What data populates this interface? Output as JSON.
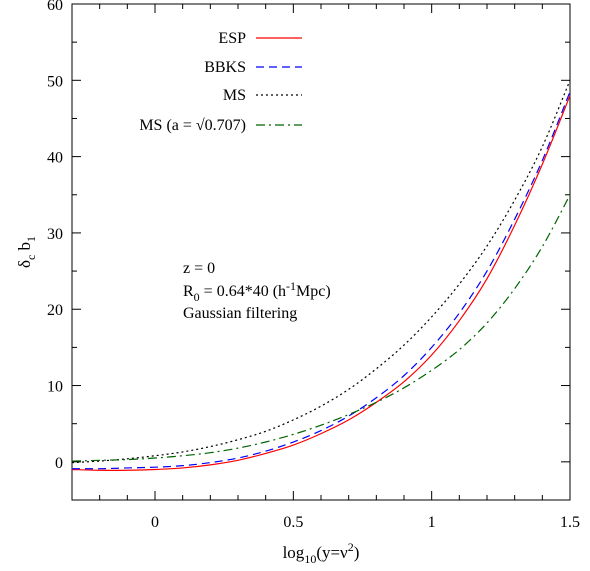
{
  "chart_data": {
    "type": "line",
    "xlabel": "log",
    "xlabel_sub": "10",
    "xlabel_rest": "(y=ν",
    "xlabel_sup": "2",
    "xlabel_end": ")",
    "ylabel": "δ",
    "ylabel_sub1": "c",
    "ylabel_mid": " b",
    "ylabel_sub2": "1",
    "xlim": [
      -0.3,
      1.5
    ],
    "ylim": [
      -5,
      60
    ],
    "xticks": [
      0,
      0.5,
      1,
      1.5
    ],
    "xtick_labels": [
      "0",
      "0.5",
      "1",
      "1.5"
    ],
    "yticks": [
      0,
      10,
      20,
      30,
      40,
      50,
      60
    ],
    "ytick_labels": [
      "0",
      "10",
      "20",
      "30",
      "40",
      "50",
      "60"
    ],
    "grid": false,
    "legend_position": "top-center",
    "annotation": {
      "line1": "z = 0",
      "line2_pre": "R",
      "line2_sub": "0",
      "line2_mid": " = 0.64*40 (h",
      "line2_sup": "-1",
      "line2_end": "Mpc)",
      "line3": "Gaussian filtering"
    },
    "series": [
      {
        "name": "ESP",
        "color": "#ff0000",
        "dash": "solid",
        "x": [
          -0.3,
          -0.2,
          -0.1,
          0.0,
          0.1,
          0.2,
          0.3,
          0.4,
          0.5,
          0.6,
          0.7,
          0.8,
          0.9,
          1.0,
          1.1,
          1.2,
          1.3,
          1.4,
          1.5
        ],
        "y": [
          -1.0,
          -1.1,
          -1.1,
          -1.0,
          -0.8,
          -0.4,
          0.2,
          1.1,
          2.2,
          3.7,
          5.5,
          7.8,
          10.5,
          14.0,
          18.5,
          24.0,
          31.0,
          39.0,
          48.0
        ]
      },
      {
        "name": "BBKS",
        "color": "#0000ff",
        "dash": "dashed",
        "x": [
          -0.3,
          -0.2,
          -0.1,
          0.0,
          0.1,
          0.2,
          0.3,
          0.4,
          0.5,
          0.6,
          0.7,
          0.8,
          0.9,
          1.0,
          1.1,
          1.2,
          1.3,
          1.4,
          1.5
        ],
        "y": [
          -0.9,
          -0.9,
          -0.8,
          -0.7,
          -0.5,
          -0.1,
          0.5,
          1.4,
          2.6,
          4.1,
          6.0,
          8.4,
          11.3,
          15.0,
          19.5,
          25.0,
          31.8,
          39.5,
          48.5
        ]
      },
      {
        "name": "MS",
        "color": "#000000",
        "dash": "dotted",
        "x": [
          -0.3,
          -0.2,
          -0.1,
          0.0,
          0.1,
          0.2,
          0.3,
          0.4,
          0.5,
          0.6,
          0.7,
          0.8,
          0.9,
          1.0,
          1.1,
          1.2,
          1.3,
          1.4,
          1.5
        ],
        "y": [
          -0.1,
          0.1,
          0.4,
          0.8,
          1.3,
          2.0,
          2.9,
          4.0,
          5.5,
          7.3,
          9.5,
          12.2,
          15.3,
          19.0,
          23.3,
          28.3,
          34.3,
          41.3,
          50.0
        ]
      },
      {
        "name": "MS (a = √0.707)",
        "color": "#006400",
        "dash": "dashdot",
        "x": [
          -0.3,
          -0.2,
          -0.1,
          0.0,
          0.1,
          0.2,
          0.3,
          0.4,
          0.5,
          0.6,
          0.7,
          0.8,
          0.9,
          1.0,
          1.1,
          1.2,
          1.3,
          1.4,
          1.5
        ],
        "y": [
          0.1,
          0.2,
          0.3,
          0.5,
          0.8,
          1.2,
          1.8,
          2.6,
          3.6,
          4.8,
          6.2,
          7.8,
          9.7,
          12.0,
          14.7,
          18.2,
          22.7,
          28.2,
          35.0
        ]
      }
    ]
  }
}
